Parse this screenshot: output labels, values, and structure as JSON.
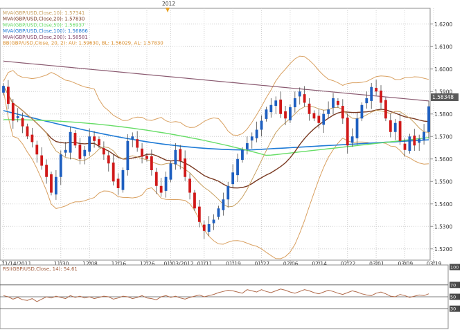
{
  "chart_data": {
    "type": "candlestick",
    "symbol": "GBP/USD",
    "year_marker": "2012",
    "y_axis": {
      "range": [
        1.515,
        1.627
      ],
      "ticks": [
        "1.5200",
        "1.5300",
        "1.5400",
        "1.5500",
        "1.5600",
        "1.5700",
        "1.5800",
        "1.5900",
        "1.6000",
        "1.6100",
        "1.6200"
      ],
      "last_price_label": "1.58348"
    },
    "x_axis": {
      "ticks": [
        {
          "i": 0,
          "label": "11/14/2011"
        },
        {
          "i": 12,
          "label": "11/30"
        },
        {
          "i": 18,
          "label": "12/08"
        },
        {
          "i": 24,
          "label": "12/16"
        },
        {
          "i": 30,
          "label": "12/26"
        },
        {
          "i": 35,
          "label": "01/03/2012"
        },
        {
          "i": 42,
          "label": "01/11"
        },
        {
          "i": 48,
          "label": "01/19"
        },
        {
          "i": 54,
          "label": "01/27"
        },
        {
          "i": 60,
          "label": "02/06"
        },
        {
          "i": 66,
          "label": "02/14"
        },
        {
          "i": 72,
          "label": "02/22"
        },
        {
          "i": 78,
          "label": "03/01"
        },
        {
          "i": 84,
          "label": "03/09"
        },
        {
          "i": 90,
          "label": "03/19"
        }
      ]
    },
    "legend": [
      {
        "text": "MVA(GBP/USD,Close,10): 1.57341",
        "color": "#c8a060"
      },
      {
        "text": "MVA(GBP/USD,Close,20): 1.57830",
        "color": "#7a3a22"
      },
      {
        "text": "MVA(GBP/USD,Close,50): 1.56937",
        "color": "#66dd66"
      },
      {
        "text": "MVA(GBP/USD,Close,100): 1.56866",
        "color": "#1f7bd6"
      },
      {
        "text": "MVA(GBP/USD,Close,200): 1.58581",
        "color": "#7a3a60"
      },
      {
        "text": "BB(GBP/USD,Close, 20, 2): AU: 1.59630, BL: 1.56029, AL: 1.57830",
        "color": "#d98c2a"
      }
    ],
    "closes": [
      1.5925,
      1.5845,
      1.577,
      1.579,
      1.5745,
      1.57,
      1.5675,
      1.562,
      1.557,
      1.552,
      1.545,
      1.552,
      1.562,
      1.564,
      1.572,
      1.566,
      1.56,
      1.564,
      1.57,
      1.568,
      1.566,
      1.562,
      1.558,
      1.55,
      1.547,
      1.555,
      1.568,
      1.57,
      1.565,
      1.561,
      1.56,
      1.555,
      1.548,
      1.545,
      1.552,
      1.558,
      1.564,
      1.559,
      1.552,
      1.545,
      1.538,
      1.532,
      1.528,
      1.531,
      1.533,
      1.538,
      1.542,
      1.548,
      1.554,
      1.56,
      1.564,
      1.567,
      1.57,
      1.573,
      1.577,
      1.582,
      1.584,
      1.586,
      1.58,
      1.578,
      1.583,
      1.587,
      1.59,
      1.585,
      1.58,
      1.578,
      1.576,
      1.58,
      1.582,
      1.587,
      1.584,
      1.578,
      1.566,
      1.57,
      1.578,
      1.584,
      1.587,
      1.592,
      1.59,
      1.585,
      1.578,
      1.572,
      1.576,
      1.568,
      1.564,
      1.57,
      1.566,
      1.569,
      1.572,
      1.5834
    ],
    "rsi": {
      "label": "RSI(GBP/USD,Close, 14): 54.61",
      "ticks": [
        "100",
        "70",
        "50",
        "30"
      ],
      "values": [
        52,
        50,
        46,
        49,
        45,
        44,
        47,
        42,
        46,
        50,
        48,
        51,
        49,
        47,
        52,
        49,
        51,
        48,
        50,
        47,
        49,
        51,
        50,
        46,
        48,
        51,
        50,
        47,
        49,
        52,
        48,
        47,
        45,
        50,
        52,
        49,
        51,
        48,
        46,
        49,
        51,
        53,
        50,
        52,
        54,
        57,
        59,
        61,
        60,
        58,
        56,
        62,
        60,
        58,
        62,
        59,
        57,
        60,
        63,
        61,
        58,
        56,
        59,
        62,
        60,
        57,
        55,
        58,
        61,
        59,
        56,
        54,
        57,
        60,
        58,
        55,
        53,
        52,
        56,
        58,
        55,
        51,
        50,
        54,
        52,
        49,
        51,
        53,
        52,
        55
      ]
    }
  }
}
